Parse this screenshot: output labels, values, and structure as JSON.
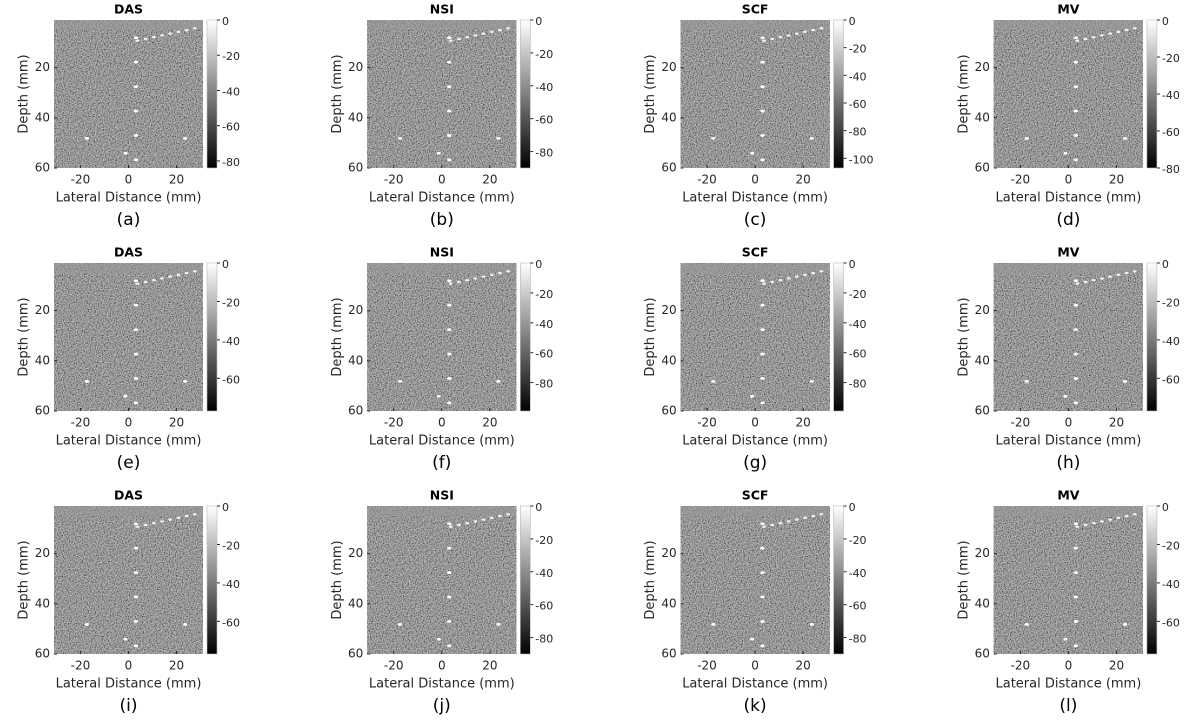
{
  "chart_data": [
    {
      "type": "image",
      "title": "DAS",
      "caption": "(a)",
      "xlabel": "Lateral Distance (mm)",
      "ylabel": "Depth (mm)",
      "xlim": [
        -31,
        31
      ],
      "ylim": [
        1,
        60
      ],
      "xticks": [
        -20,
        0,
        20
      ],
      "yticks": [
        20,
        40,
        60
      ],
      "clim": [
        -84,
        0
      ],
      "cticks": [
        0,
        -20,
        -40,
        -60,
        -80
      ]
    },
    {
      "type": "image",
      "title": "NSI",
      "caption": "(b)",
      "xlabel": "Lateral Distance (mm)",
      "ylabel": "Depth (mm)",
      "xlim": [
        -31,
        31
      ],
      "ylim": [
        1,
        60
      ],
      "xticks": [
        -20,
        0,
        20
      ],
      "yticks": [
        20,
        40,
        60
      ],
      "clim": [
        -90,
        0
      ],
      "cticks": [
        0,
        -20,
        -40,
        -60,
        -80
      ]
    },
    {
      "type": "image",
      "title": "SCF",
      "caption": "(c)",
      "xlabel": "Lateral Distance (mm)",
      "ylabel": "Depth (mm)",
      "xlim": [
        -31,
        31
      ],
      "ylim": [
        1,
        60
      ],
      "xticks": [
        -20,
        0,
        20
      ],
      "yticks": [
        20,
        40,
        60
      ],
      "clim": [
        -107,
        0
      ],
      "cticks": [
        0,
        -20,
        -40,
        -60,
        -80,
        -100
      ]
    },
    {
      "type": "image",
      "title": "MV",
      "caption": "(d)",
      "xlabel": "Lateral Distance (mm)",
      "ylabel": "Depth (mm)",
      "xlim": [
        -31,
        31
      ],
      "ylim": [
        1,
        60
      ],
      "xticks": [
        -20,
        0,
        20
      ],
      "yticks": [
        20,
        40,
        60
      ],
      "clim": [
        -80,
        0
      ],
      "cticks": [
        0,
        -20,
        -40,
        -60,
        -80
      ]
    },
    {
      "type": "image",
      "title": "DAS",
      "caption": "(e)",
      "xlabel": "Lateral Distance (mm)",
      "ylabel": "Depth (mm)",
      "xlim": [
        -31,
        31
      ],
      "ylim": [
        1,
        60
      ],
      "xticks": [
        -20,
        0,
        20
      ],
      "yticks": [
        20,
        40,
        60
      ],
      "clim": [
        -77,
        0
      ],
      "cticks": [
        0,
        -20,
        -40,
        -60
      ]
    },
    {
      "type": "image",
      "title": "NSI",
      "caption": "(f)",
      "xlabel": "Lateral Distance (mm)",
      "ylabel": "Depth (mm)",
      "xlim": [
        -31,
        31
      ],
      "ylim": [
        1,
        60
      ],
      "xticks": [
        -20,
        0,
        20
      ],
      "yticks": [
        20,
        40,
        60
      ],
      "clim": [
        -99,
        0
      ],
      "cticks": [
        0,
        -20,
        -40,
        -60,
        -80
      ]
    },
    {
      "type": "image",
      "title": "SCF",
      "caption": "(g)",
      "xlabel": "Lateral Distance (mm)",
      "ylabel": "Depth (mm)",
      "xlim": [
        -31,
        31
      ],
      "ylim": [
        1,
        60
      ],
      "xticks": [
        -20,
        0,
        20
      ],
      "yticks": [
        20,
        40,
        60
      ],
      "clim": [
        -99,
        0
      ],
      "cticks": [
        0,
        -20,
        -40,
        -60,
        -80
      ]
    },
    {
      "type": "image",
      "title": "MV",
      "caption": "(h)",
      "xlabel": "Lateral Distance (mm)",
      "ylabel": "Depth (mm)",
      "xlim": [
        -31,
        31
      ],
      "ylim": [
        1,
        60
      ],
      "xticks": [
        -20,
        0,
        20
      ],
      "yticks": [
        20,
        40,
        60
      ],
      "clim": [
        -77,
        0
      ],
      "cticks": [
        0,
        -20,
        -40,
        -60
      ]
    },
    {
      "type": "image",
      "title": "DAS",
      "caption": "(i)",
      "xlabel": "Lateral Distance (mm)",
      "ylabel": "Depth (mm)",
      "xlim": [
        -31,
        31
      ],
      "ylim": [
        1,
        60
      ],
      "xticks": [
        -20,
        0,
        20
      ],
      "yticks": [
        20,
        40,
        60
      ],
      "clim": [
        -77,
        0
      ],
      "cticks": [
        0,
        -20,
        -40,
        -60
      ]
    },
    {
      "type": "image",
      "title": "NSI",
      "caption": "(j)",
      "xlabel": "Lateral Distance (mm)",
      "ylabel": "Depth (mm)",
      "xlim": [
        -31,
        31
      ],
      "ylim": [
        1,
        60
      ],
      "xticks": [
        -20,
        0,
        20
      ],
      "yticks": [
        20,
        40,
        60
      ],
      "clim": [
        -90,
        0
      ],
      "cticks": [
        0,
        -20,
        -40,
        -60,
        -80
      ]
    },
    {
      "type": "image",
      "title": "SCF",
      "caption": "(k)",
      "xlabel": "Lateral Distance (mm)",
      "ylabel": "Depth (mm)",
      "xlim": [
        -31,
        31
      ],
      "ylim": [
        1,
        60
      ],
      "xticks": [
        -20,
        0,
        20
      ],
      "yticks": [
        20,
        40,
        60
      ],
      "clim": [
        -90,
        0
      ],
      "cticks": [
        0,
        -20,
        -40,
        -60,
        -80
      ]
    },
    {
      "type": "image",
      "title": "MV",
      "caption": "(l)",
      "xlabel": "Lateral Distance (mm)",
      "ylabel": "Depth (mm)",
      "xlim": [
        -31,
        31
      ],
      "ylim": [
        1,
        60
      ],
      "xticks": [
        -20,
        0,
        20
      ],
      "yticks": [
        20,
        40,
        60
      ],
      "clim": [
        -77,
        0
      ],
      "cticks": [
        0,
        -20,
        -40,
        -60
      ]
    }
  ]
}
